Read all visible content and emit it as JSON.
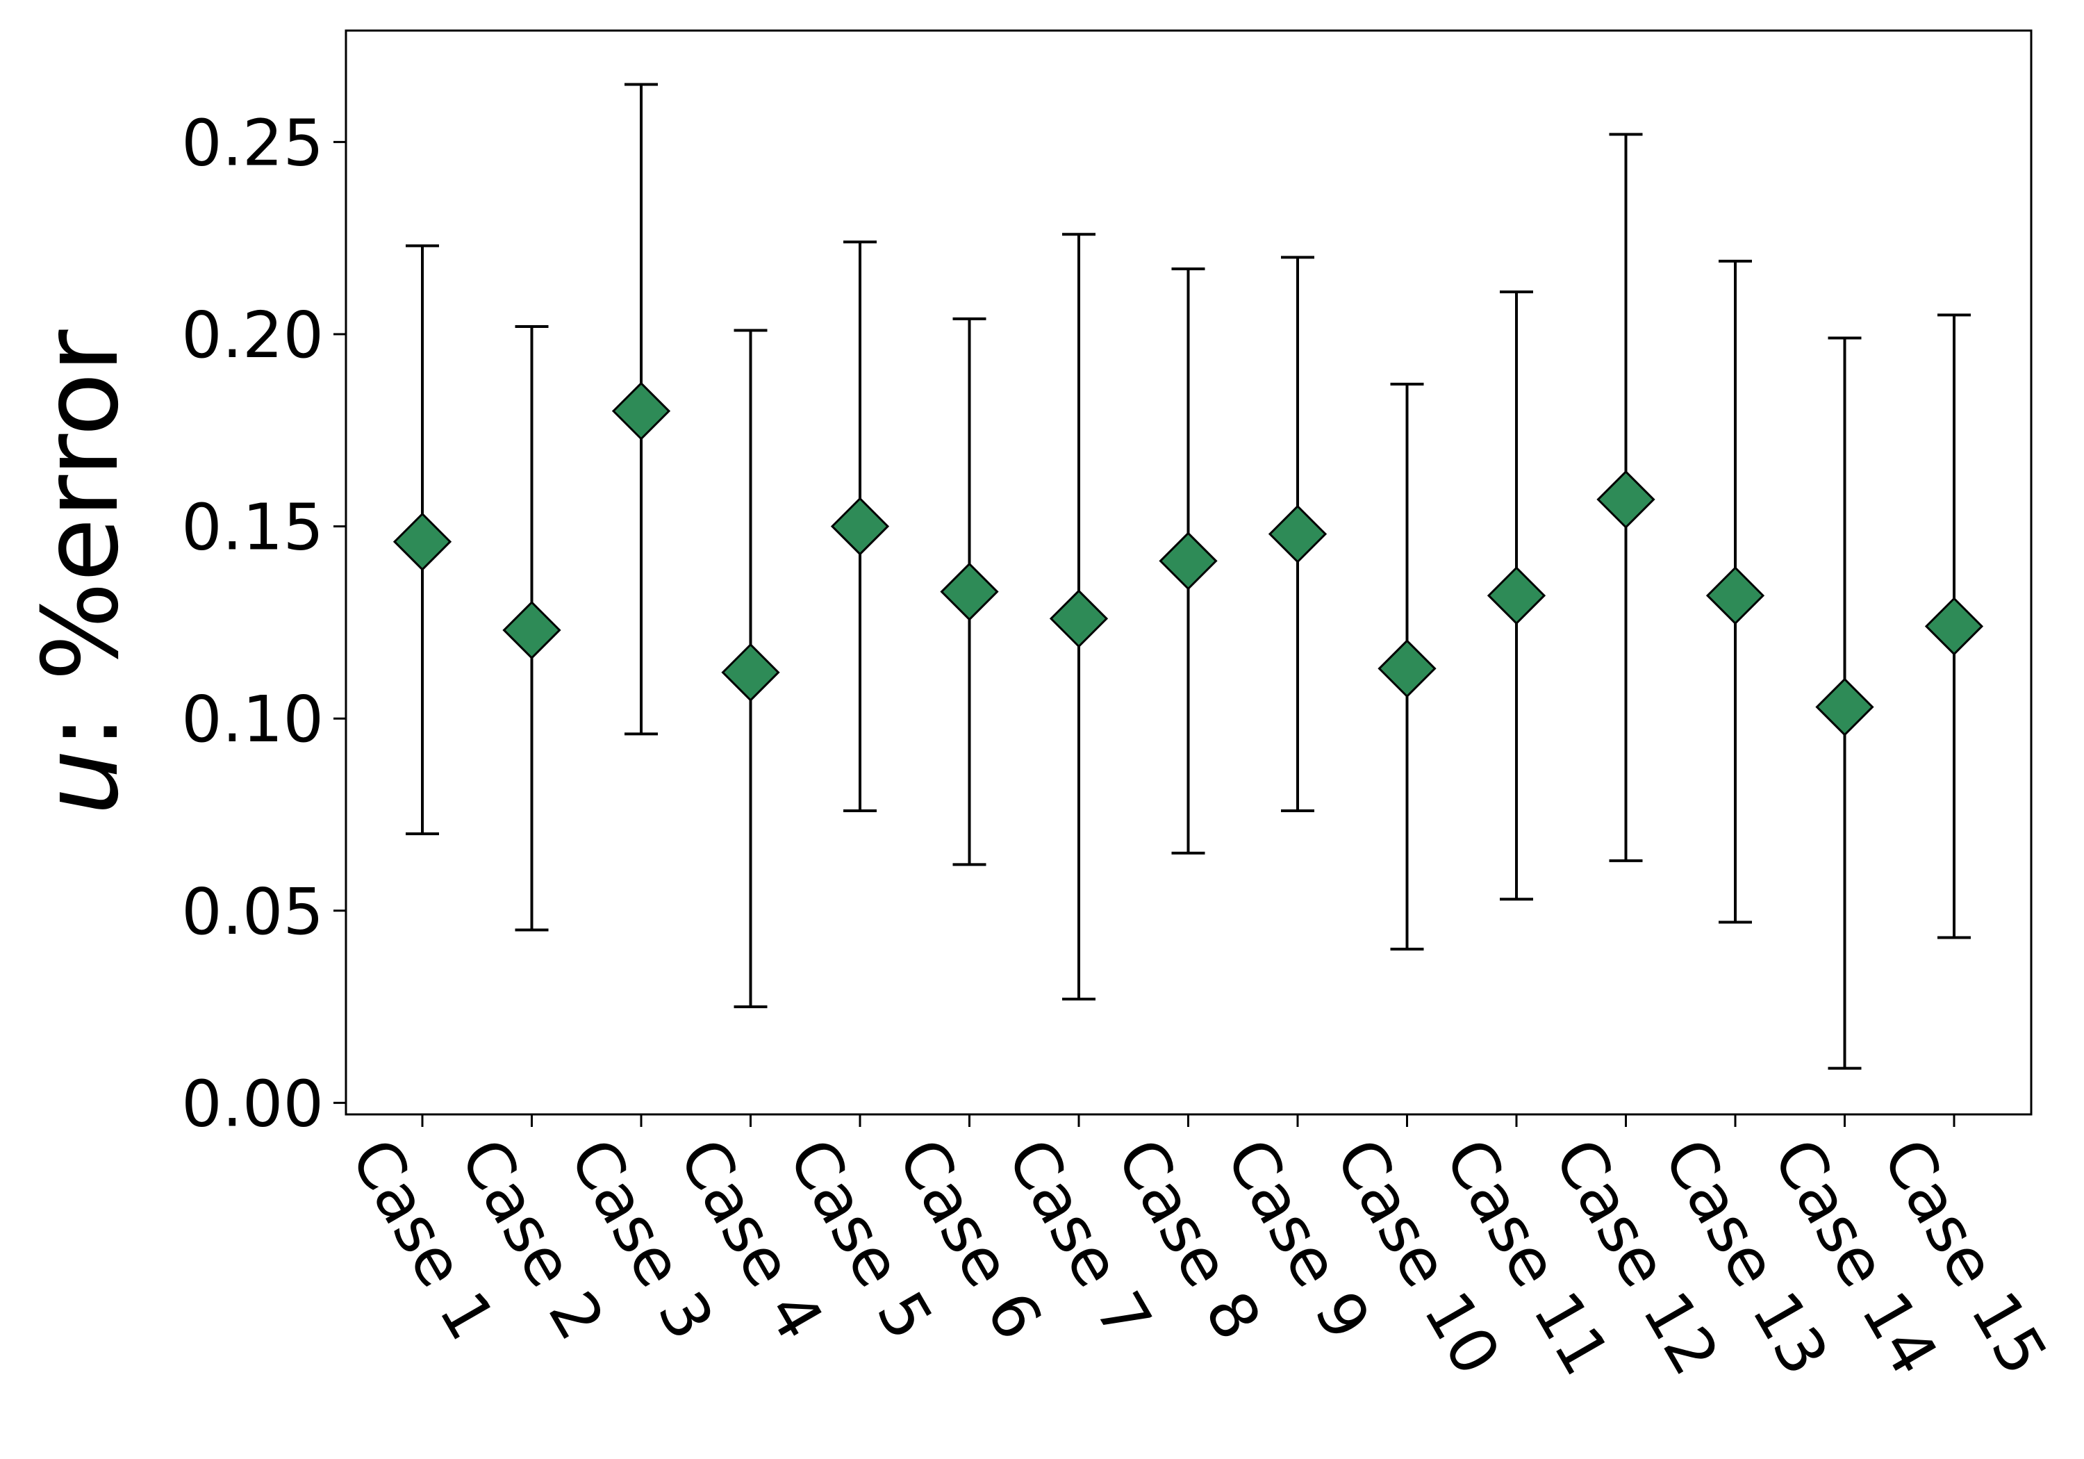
{
  "chart_data": {
    "type": "scatter",
    "title": "",
    "xlabel": "",
    "ylabel": {
      "variable": "u",
      "rest": ": %error"
    },
    "categories": [
      "Case 1",
      "Case 2",
      "Case 3",
      "Case 4",
      "Case 5",
      "Case 6",
      "Case 7",
      "Case 8",
      "Case 9",
      "Case 10",
      "Case 11",
      "Case 12",
      "Case 13",
      "Case 14",
      "Case 15"
    ],
    "series": [
      {
        "values": [
          0.146,
          0.123,
          0.18,
          0.112,
          0.15,
          0.133,
          0.126,
          0.141,
          0.148,
          0.113,
          0.132,
          0.157,
          0.132,
          0.103,
          0.124
        ],
        "error_lower": [
          0.07,
          0.045,
          0.096,
          0.025,
          0.076,
          0.062,
          0.027,
          0.065,
          0.076,
          0.04,
          0.053,
          0.063,
          0.047,
          0.009,
          0.043
        ],
        "error_upper": [
          0.223,
          0.202,
          0.265,
          0.201,
          0.224,
          0.204,
          0.226,
          0.217,
          0.22,
          0.187,
          0.211,
          0.252,
          0.219,
          0.199,
          0.205
        ]
      }
    ],
    "marker": "diamond",
    "marker_color": "#2e8b57",
    "error_bar_color": "#000000",
    "ylim": [
      -0.003,
      0.279
    ],
    "yticks": [
      "0.00",
      "0.05",
      "0.10",
      "0.15",
      "0.20",
      "0.25"
    ],
    "grid": false,
    "legend": "none"
  }
}
